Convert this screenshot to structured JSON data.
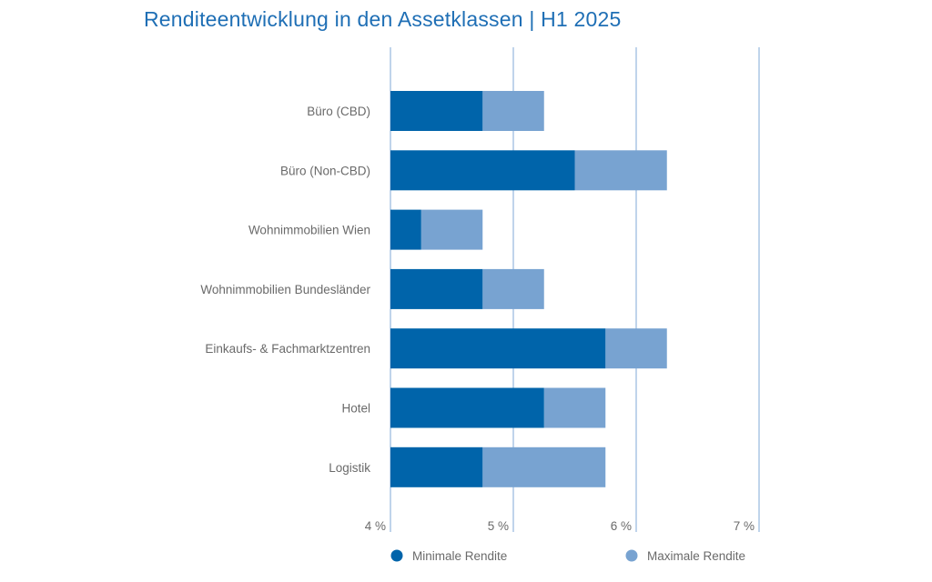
{
  "chart_data": {
    "type": "bar",
    "orientation": "horizontal",
    "stacked_range": true,
    "title": "Renditeentwicklung in den Assetklassen | H1 2025",
    "xlabel": "",
    "ylabel": "",
    "xlim": [
      4,
      7
    ],
    "xticks": [
      4,
      5,
      6,
      7
    ],
    "xtick_labels": [
      "4 %",
      "5 %",
      "6 %",
      "7 %"
    ],
    "grid": true,
    "legend_position": "bottom",
    "categories": [
      "Büro (CBD)",
      "Büro (Non-CBD)",
      "Wohnimmobilien Wien",
      "Wohnimmobilien Bundesländer",
      "Einkaufs- & Fachmarktzentren",
      "Hotel",
      "Logistik"
    ],
    "series": [
      {
        "name": "Minimale Rendite",
        "color": "#0064aa",
        "values": [
          4.75,
          5.5,
          4.25,
          4.75,
          5.75,
          5.25,
          4.75
        ]
      },
      {
        "name": "Maximale Rendite",
        "color": "#78a3d1",
        "values": [
          5.25,
          6.25,
          4.75,
          5.25,
          6.25,
          5.75,
          5.75
        ]
      }
    ],
    "grid_color": "#9dbde0"
  }
}
